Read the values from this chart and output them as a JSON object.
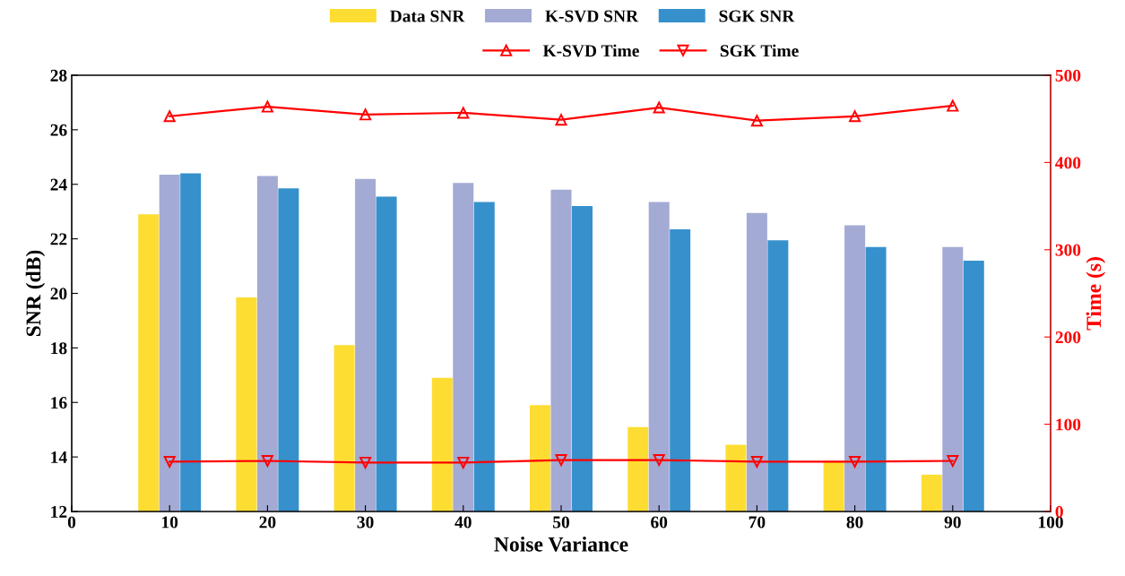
{
  "chart_data": {
    "type": "bar",
    "xlabel": "Noise Variance",
    "ylabel": "SNR (dB)",
    "y2label": "Time (s)",
    "x": [
      10,
      20,
      30,
      40,
      50,
      60,
      70,
      80,
      90
    ],
    "xlim": [
      0,
      100
    ],
    "xticks": [
      0,
      10,
      20,
      30,
      40,
      50,
      60,
      70,
      80,
      90,
      100
    ],
    "ylim": [
      12,
      28
    ],
    "yticks": [
      12,
      14,
      16,
      18,
      20,
      22,
      24,
      26,
      28
    ],
    "y2lim": [
      0,
      500
    ],
    "y2ticks": [
      0,
      100,
      200,
      300,
      400,
      500
    ],
    "grid": false,
    "legend": "top",
    "series": [
      {
        "name": "Data SNR",
        "color": "#fedd33",
        "values": [
          22.9,
          19.85,
          18.1,
          16.9,
          15.9,
          15.1,
          14.45,
          13.85,
          13.35
        ]
      },
      {
        "name": "K-SVD SNR",
        "color": "#a3aad4",
        "values": [
          24.35,
          24.3,
          24.2,
          24.05,
          23.8,
          23.35,
          22.95,
          22.5,
          21.7
        ]
      },
      {
        "name": "SGK SNR",
        "color": "#3690cc",
        "values": [
          24.4,
          23.85,
          23.55,
          23.35,
          23.2,
          22.35,
          21.95,
          21.7,
          21.2
        ]
      },
      {
        "name": "K-SVD Time",
        "type": "line",
        "axis": "y2",
        "color": "#ff0000",
        "marker": "triangle",
        "values": [
          453,
          464,
          455,
          457,
          449,
          463,
          448,
          453,
          465
        ]
      },
      {
        "name": "SGK Time",
        "type": "line",
        "axis": "y2",
        "color": "#ff0000",
        "marker": "triangle_down",
        "values": [
          57,
          58,
          56,
          56,
          59,
          59,
          57,
          57,
          58
        ]
      }
    ]
  }
}
